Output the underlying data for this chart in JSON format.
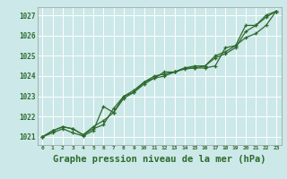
{
  "background_color": "#cce8e8",
  "plot_bg_color": "#cce8e8",
  "grid_color": "#ffffff",
  "line_color": "#2d6a2d",
  "title": "Graphe pression niveau de la mer (hPa)",
  "title_fontsize": 7.5,
  "xlim": [
    -0.5,
    23.5
  ],
  "ylim": [
    1020.6,
    1027.4
  ],
  "yticks": [
    1021,
    1022,
    1023,
    1024,
    1025,
    1026,
    1027
  ],
  "xticks": [
    0,
    1,
    2,
    3,
    4,
    5,
    6,
    7,
    8,
    9,
    10,
    11,
    12,
    13,
    14,
    15,
    16,
    17,
    18,
    19,
    20,
    21,
    22,
    23
  ],
  "series1": [
    1021.0,
    1021.3,
    1021.5,
    1021.4,
    1021.1,
    1021.4,
    1021.6,
    1022.4,
    1023.0,
    1023.3,
    1023.7,
    1024.0,
    1024.1,
    1024.2,
    1024.4,
    1024.5,
    1024.5,
    1025.0,
    1025.2,
    1025.5,
    1026.5,
    1026.5,
    1027.0,
    1027.2
  ],
  "series2": [
    1021.0,
    1021.3,
    1021.5,
    1021.4,
    1021.1,
    1021.5,
    1021.8,
    1022.2,
    1022.9,
    1023.2,
    1023.6,
    1023.9,
    1024.0,
    1024.2,
    1024.4,
    1024.4,
    1024.5,
    1024.9,
    1025.1,
    1025.4,
    1026.2,
    1026.5,
    1026.9,
    1027.2
  ],
  "series3": [
    1021.0,
    1021.2,
    1021.4,
    1021.2,
    1021.05,
    1021.3,
    1022.5,
    1022.2,
    1023.0,
    1023.2,
    1023.7,
    1023.9,
    1024.2,
    1024.2,
    1024.35,
    1024.4,
    1024.4,
    1024.5,
    1025.4,
    1025.5,
    1025.9,
    1026.1,
    1026.5,
    1027.2
  ]
}
